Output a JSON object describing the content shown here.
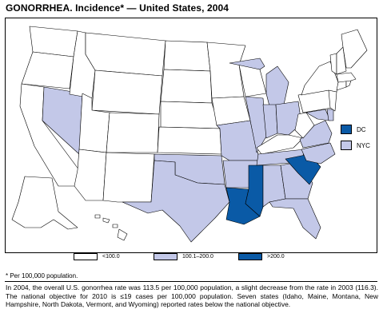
{
  "title": "GONORRHEA. Incidence* — United States, 2004",
  "legend": {
    "inset": [
      {
        "label": "DC",
        "color": "#0a5aa6"
      },
      {
        "label": "NYC",
        "color": "#c3c8e8"
      }
    ],
    "scale": [
      {
        "label": "<100.0",
        "color": "#ffffff"
      },
      {
        "label": "100.1–200.0",
        "color": "#c3c8e8"
      },
      {
        "label": ">200.0",
        "color": "#0a5aa6"
      }
    ]
  },
  "footnote": "* Per 100,000 population.",
  "summary": "In 2004, the overall U.S. gonorrhea rate was 113.5 per 100,000 population, a slight decrease from the rate in 2003 (116.3). The national objective for 2010 is ≤19 cases per 100,000 population. Seven states (Idaho, Maine, Montana, New Hampshire, North Dakota, Vermont, and Wyoming) reported rates below the national objective.",
  "states": {
    "WA": "low",
    "OR": "low",
    "CA": "low",
    "NV": "mid",
    "ID": "low",
    "MT": "low",
    "WY": "low",
    "UT": "low",
    "AZ": "low",
    "CO": "low",
    "NM": "low",
    "ND": "low",
    "SD": "low",
    "NE": "low",
    "KS": "low",
    "OK": "mid",
    "TX": "mid",
    "MN": "low",
    "IA": "low",
    "MO": "mid",
    "AR": "mid",
    "LA": "high",
    "WI": "low",
    "IL": "mid",
    "MS": "high",
    "MI": "mid",
    "IN": "mid",
    "OH": "mid",
    "KY": "low",
    "TN": "mid",
    "AL": "mid",
    "GA": "mid",
    "FL": "mid",
    "SC": "high",
    "NC": "mid",
    "VA": "mid",
    "WV": "low",
    "PA": "low",
    "NY": "low",
    "VT": "low",
    "NH": "low",
    "ME": "low",
    "MA": "low",
    "CT": "low",
    "RI": "low",
    "NJ": "low",
    "DE": "mid",
    "MD": "mid",
    "AK": "low",
    "HI": "low"
  },
  "colors": {
    "low": "#ffffff",
    "mid": "#c3c8e8",
    "high": "#0a5aa6"
  }
}
